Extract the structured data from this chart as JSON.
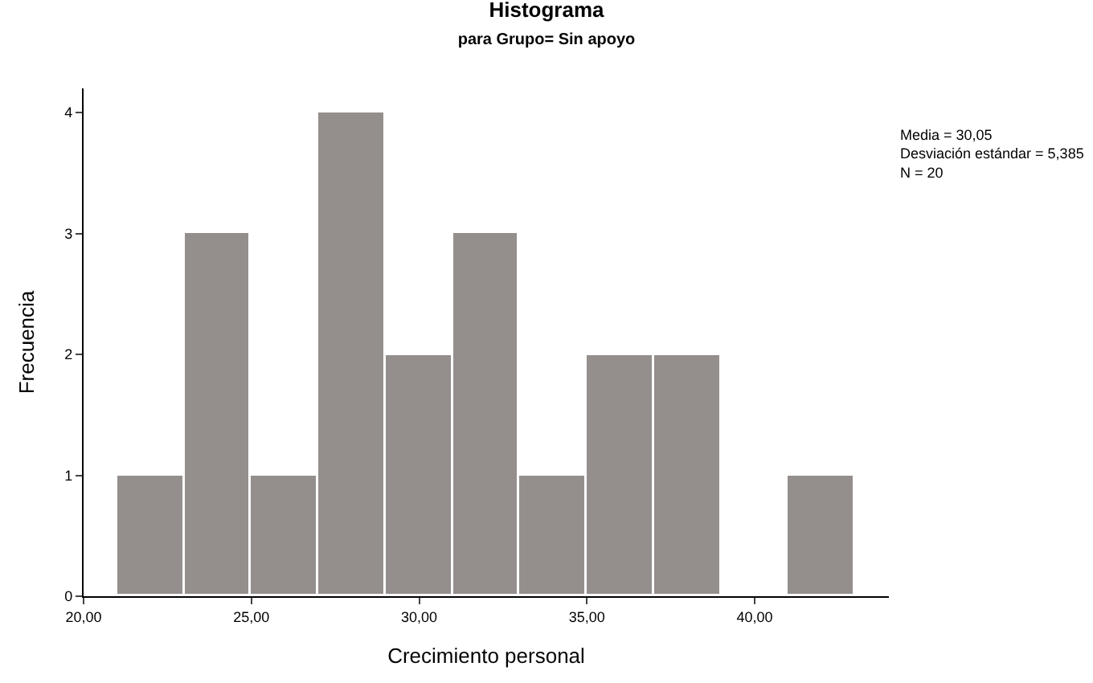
{
  "chart_data": {
    "type": "histogram",
    "title": "Histograma",
    "subtitle": "para Grupo= Sin apoyo",
    "xlabel": "Crecimiento personal",
    "ylabel": "Frecuencia",
    "bins": [
      21,
      23,
      25,
      27,
      29,
      31,
      33,
      35,
      37,
      39,
      41,
      43
    ],
    "values": [
      1,
      3,
      1,
      4,
      2,
      3,
      1,
      2,
      2,
      0,
      1
    ],
    "color": "#948f8d",
    "xlim": [
      20,
      44
    ],
    "ylim": [
      0,
      4.2
    ],
    "xticks": [
      {
        "value": 20,
        "label": "20,00"
      },
      {
        "value": 25,
        "label": "25,00"
      },
      {
        "value": 30,
        "label": "30,00"
      },
      {
        "value": 35,
        "label": "35,00"
      },
      {
        "value": 40,
        "label": "40,00"
      }
    ],
    "yticks": [
      0,
      1,
      2,
      3,
      4
    ],
    "annotations": [
      "Media = 30,05\nDesviación estándar = 5,385\nN = 20"
    ],
    "legend": false
  }
}
